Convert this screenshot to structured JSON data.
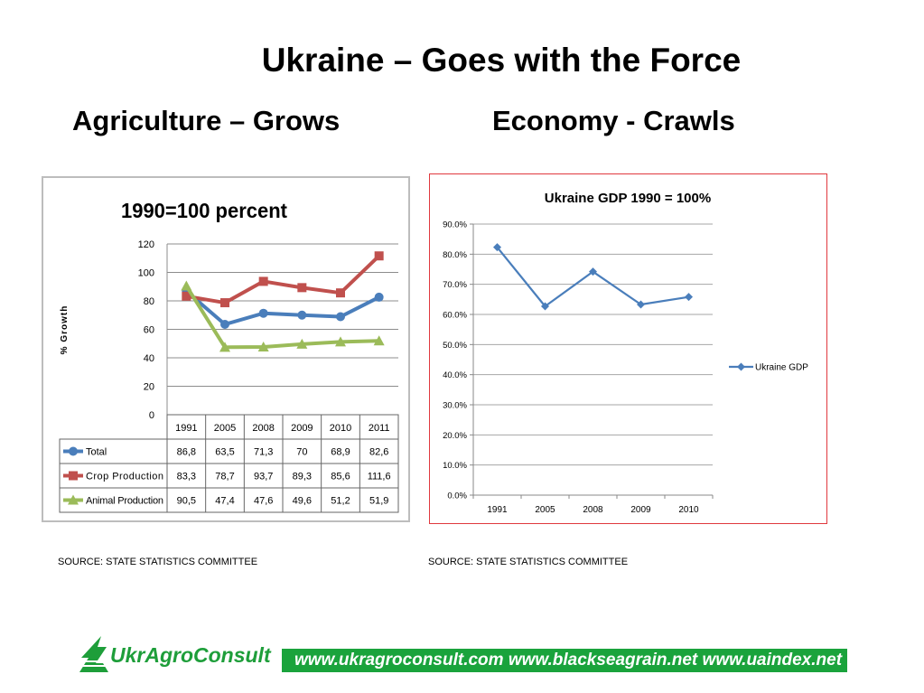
{
  "slide": {
    "title": "Ukraine – Goes with the Force",
    "left_subtitle": "Agriculture – Grows",
    "right_subtitle": "Economy - Crawls",
    "left_source": "SOURCE:  STATE STATISTICS COMMITTEE",
    "right_source": "SOURCE:  STATE STATISTICS COMMITTEE"
  },
  "footer": {
    "logo_text": "UkrAgroConsult",
    "websites": "www.ukragroconsult.com  www.blackseagrain.net  www.uaindex.net",
    "green": "#1aa33c"
  },
  "chart_data": [
    {
      "type": "line",
      "title": "1990=100 percent",
      "ylabel": "% Growth",
      "xlabel": "",
      "categories": [
        "1991",
        "2005",
        "2008",
        "2009",
        "2010",
        "2011"
      ],
      "ylim": [
        0,
        120
      ],
      "yticks": [
        0,
        20,
        40,
        60,
        80,
        100,
        120
      ],
      "grid": true,
      "legend": "data-table",
      "series": [
        {
          "name": "Total",
          "color": "#4a7ebb",
          "marker": "circle",
          "values": [
            86.8,
            63.5,
            71.3,
            70,
            68.9,
            82.6
          ],
          "labels": [
            "86,8",
            "63,5",
            "71,3",
            "70",
            "68,9",
            "82,6"
          ]
        },
        {
          "name": "Crop Production",
          "color": "#c0504d",
          "marker": "square",
          "values": [
            83.3,
            78.7,
            93.7,
            89.3,
            85.6,
            111.6
          ],
          "labels": [
            "83,3",
            "78,7",
            "93,7",
            "89,3",
            "85,6",
            "111,6"
          ]
        },
        {
          "name": "Animal Production",
          "color": "#9bbb59",
          "marker": "triangle",
          "values": [
            90.5,
            47.4,
            47.6,
            49.6,
            51.2,
            51.9
          ],
          "labels": [
            "90,5",
            "47,4",
            "47,6",
            "49,6",
            "51,2",
            "51,9"
          ]
        }
      ]
    },
    {
      "type": "line",
      "title": "Ukraine GDP 1990 = 100%",
      "xlabel": "",
      "ylabel": "",
      "categories": [
        "1991",
        "2005",
        "2008",
        "2009",
        "2010"
      ],
      "ylim": [
        0,
        90
      ],
      "yticks": [
        0,
        10,
        20,
        30,
        40,
        50,
        60,
        70,
        80,
        90
      ],
      "ytick_labels": [
        "0.0%",
        "10.0%",
        "20.0%",
        "30.0%",
        "40.0%",
        "50.0%",
        "60.0%",
        "70.0%",
        "80.0%",
        "90.0%"
      ],
      "grid": true,
      "legend": "right",
      "series": [
        {
          "name": "Ukraine GDP",
          "color": "#4a7ebb",
          "marker": "diamond",
          "values": [
            82.3,
            62.7,
            74.2,
            63.3,
            65.8
          ]
        }
      ]
    }
  ]
}
